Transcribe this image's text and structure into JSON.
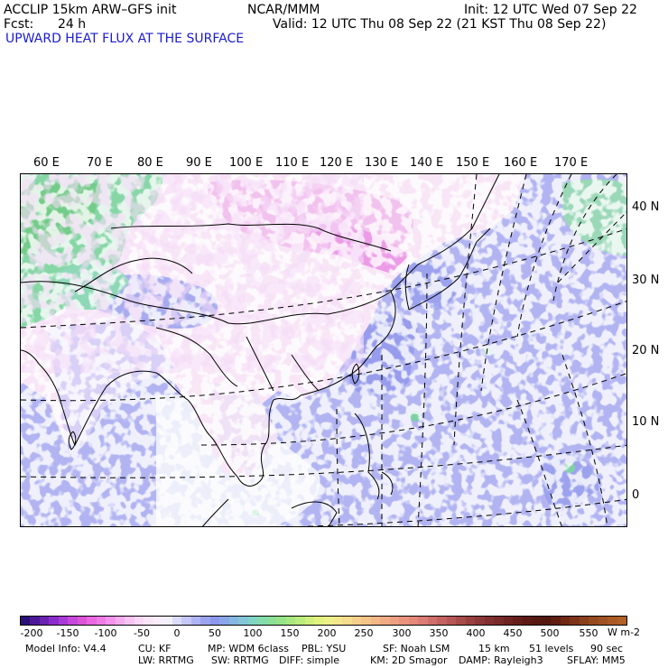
{
  "header": {
    "model": "ACCLIP 15km ARW–GFS init",
    "org": "NCAR/MMM",
    "init": "Init: 12 UTC Wed 07 Sep 22",
    "fcst_label": "Fcst:",
    "fcst_value": "24 h",
    "valid": "Valid: 12 UTC Thu 08 Sep 22 (21 KST Thu 08 Sep 22)",
    "field": "UPWARD HEAT FLUX AT THE SURFACE"
  },
  "map": {
    "lon_labels": [
      "60 E",
      "70 E",
      "80 E",
      "90 E",
      "100 E",
      "110 E",
      "120 E",
      "130 E",
      "140 E",
      "150 E",
      "160 E",
      "170 E"
    ],
    "lat_labels": [
      "40 N",
      "30 N",
      "20 N",
      "10 N",
      "0"
    ]
  },
  "colorbar": {
    "tick_labels": [
      "-200",
      "-150",
      "-100",
      "-50",
      "0",
      "50",
      "100",
      "150",
      "200",
      "250",
      "300",
      "350",
      "400",
      "450",
      "500",
      "550"
    ],
    "unit": "W m-2",
    "colors": [
      "#2a0f78",
      "#4b1898",
      "#6a22b0",
      "#8a2ccc",
      "#a83ad8",
      "#c648dc",
      "#dc54d8",
      "#ea68e0",
      "#f07ce8",
      "#f494ec",
      "#f6acf0",
      "#f8c4f4",
      "#f8d8f6",
      "#fae6f8",
      "#fbeefa",
      "#f4f0fa",
      "#dcdcfa",
      "#c6c8f8",
      "#b0b4f4",
      "#9ca4f0",
      "#8c98ee",
      "#8aa6ea",
      "#86b6e2",
      "#84c6d8",
      "#82d4c4",
      "#84dcac",
      "#8ae096",
      "#96e488",
      "#a8e880",
      "#bcec7c",
      "#d0f07c",
      "#e2f27e",
      "#eef088",
      "#f4e88c",
      "#f6dc8c",
      "#f6d08a",
      "#f4c488",
      "#f2b886",
      "#f0ac84",
      "#eea082",
      "#ea947e",
      "#e4887a",
      "#dc7c74",
      "#d06e6c",
      "#c46262",
      "#b65656",
      "#a64a4a",
      "#984040",
      "#8c3838",
      "#823030",
      "#7a2a2a",
      "#6e2420",
      "#661e1a",
      "#5c1a14",
      "#561812",
      "#521810",
      "#601e10",
      "#6e2814",
      "#7c3418",
      "#8a401c",
      "#964a20",
      "#a05224",
      "#aa5a26",
      "#b06028"
    ]
  },
  "footer": {
    "line1": [
      "Model Info: V4.4",
      "CU: KF",
      "MP: WDM 6class",
      "PBL: YSU",
      "SF: Noah LSM",
      "15 km",
      "51 levels",
      "90 sec"
    ],
    "line2": [
      "LW: RRTMG",
      "SW: RRTMG",
      "DIFF: simple",
      "KM: 2D Smagor",
      "DAMP: Rayleigh3",
      "SFLAY: MM5"
    ]
  }
}
